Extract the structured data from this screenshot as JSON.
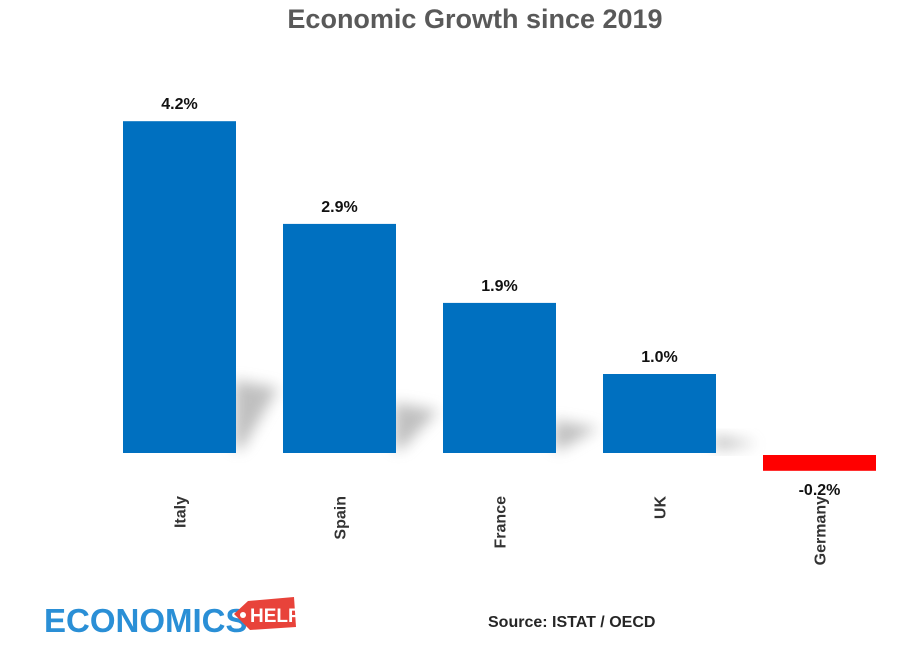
{
  "chart_data": {
    "type": "bar",
    "title": "Economic Growth since 2019",
    "categories": [
      "Italy",
      "Spain",
      "France",
      "UK",
      "Germany"
    ],
    "values": [
      4.2,
      2.9,
      1.9,
      1.0,
      -0.2
    ],
    "value_labels": [
      "4.2%",
      "2.9%",
      "1.9%",
      "1.0%",
      "-0.2%"
    ],
    "ylabel": "",
    "xlabel": "",
    "unit": "%",
    "grid": false,
    "legend": "none",
    "colors": {
      "positive": "#0070c0",
      "negative": "#ff0000"
    }
  },
  "source": "Source: ISTAT / OECD",
  "logo": {
    "word": "ECONOMICS",
    "tag": "HELP",
    "word_color": "#2a8fd6",
    "tag_color": "#e8433a"
  }
}
